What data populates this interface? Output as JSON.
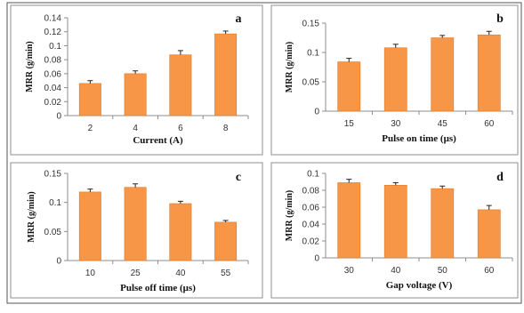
{
  "colors": {
    "bar": "#F79646",
    "bar_stroke": "#E07B2C",
    "axis": "#8C8C8C",
    "frame": "#8F8F8F",
    "error_bar": "#222222"
  },
  "chart_data": [
    {
      "type": "bar",
      "panel_label": "a",
      "categories": [
        "2",
        "4",
        "6",
        "8"
      ],
      "values": [
        0.046,
        0.06,
        0.087,
        0.117
      ],
      "errors": [
        0.004,
        0.004,
        0.006,
        0.004
      ],
      "xlabel": "Current (A)",
      "ylabel": "MRR (g/min)",
      "ylim": [
        0,
        0.14
      ],
      "yticks": [
        0,
        0.02,
        0.04,
        0.06,
        0.08,
        0.1,
        0.12,
        0.14
      ],
      "ytick_labels": [
        "0",
        "0.02",
        "0.04",
        "0.06",
        "0.08",
        "0.1",
        "0.12",
        "0.14"
      ],
      "grid": false
    },
    {
      "type": "bar",
      "panel_label": "b",
      "categories": [
        "15",
        "30",
        "45",
        "60"
      ],
      "values": [
        0.084,
        0.108,
        0.125,
        0.13
      ],
      "errors": [
        0.006,
        0.006,
        0.004,
        0.006
      ],
      "xlabel": "Pulse on time  (μs)",
      "ylabel": "MRR  (g/min)",
      "ylim": [
        0,
        0.15
      ],
      "yticks": [
        0,
        0.05,
        0.1,
        0.15
      ],
      "ytick_labels": [
        "0",
        "0.05",
        "0.1",
        "0.15"
      ],
      "grid": false
    },
    {
      "type": "bar",
      "panel_label": "c",
      "categories": [
        "10",
        "25",
        "40",
        "55"
      ],
      "values": [
        0.118,
        0.126,
        0.098,
        0.066
      ],
      "errors": [
        0.005,
        0.006,
        0.004,
        0.003
      ],
      "xlabel": "Pulse off time  (μs)",
      "ylabel": "MRR  (g/min)",
      "ylim": [
        0,
        0.15
      ],
      "yticks": [
        0,
        0.05,
        0.1,
        0.15
      ],
      "ytick_labels": [
        "0",
        "0.05",
        "0.1",
        "0.15"
      ],
      "grid": false
    },
    {
      "type": "bar",
      "panel_label": "d",
      "categories": [
        "30",
        "40",
        "50",
        "60"
      ],
      "values": [
        0.089,
        0.086,
        0.082,
        0.057
      ],
      "errors": [
        0.004,
        0.003,
        0.003,
        0.005
      ],
      "xlabel": "Gap voltage  (V)",
      "ylabel": "MRR  (g/min)",
      "ylim": [
        0,
        0.1
      ],
      "yticks": [
        0,
        0.02,
        0.04,
        0.06,
        0.08,
        0.1
      ],
      "ytick_labels": [
        "0",
        "0.02",
        "0.04",
        "0.06",
        "0.08",
        "0.1"
      ],
      "grid": false
    }
  ]
}
